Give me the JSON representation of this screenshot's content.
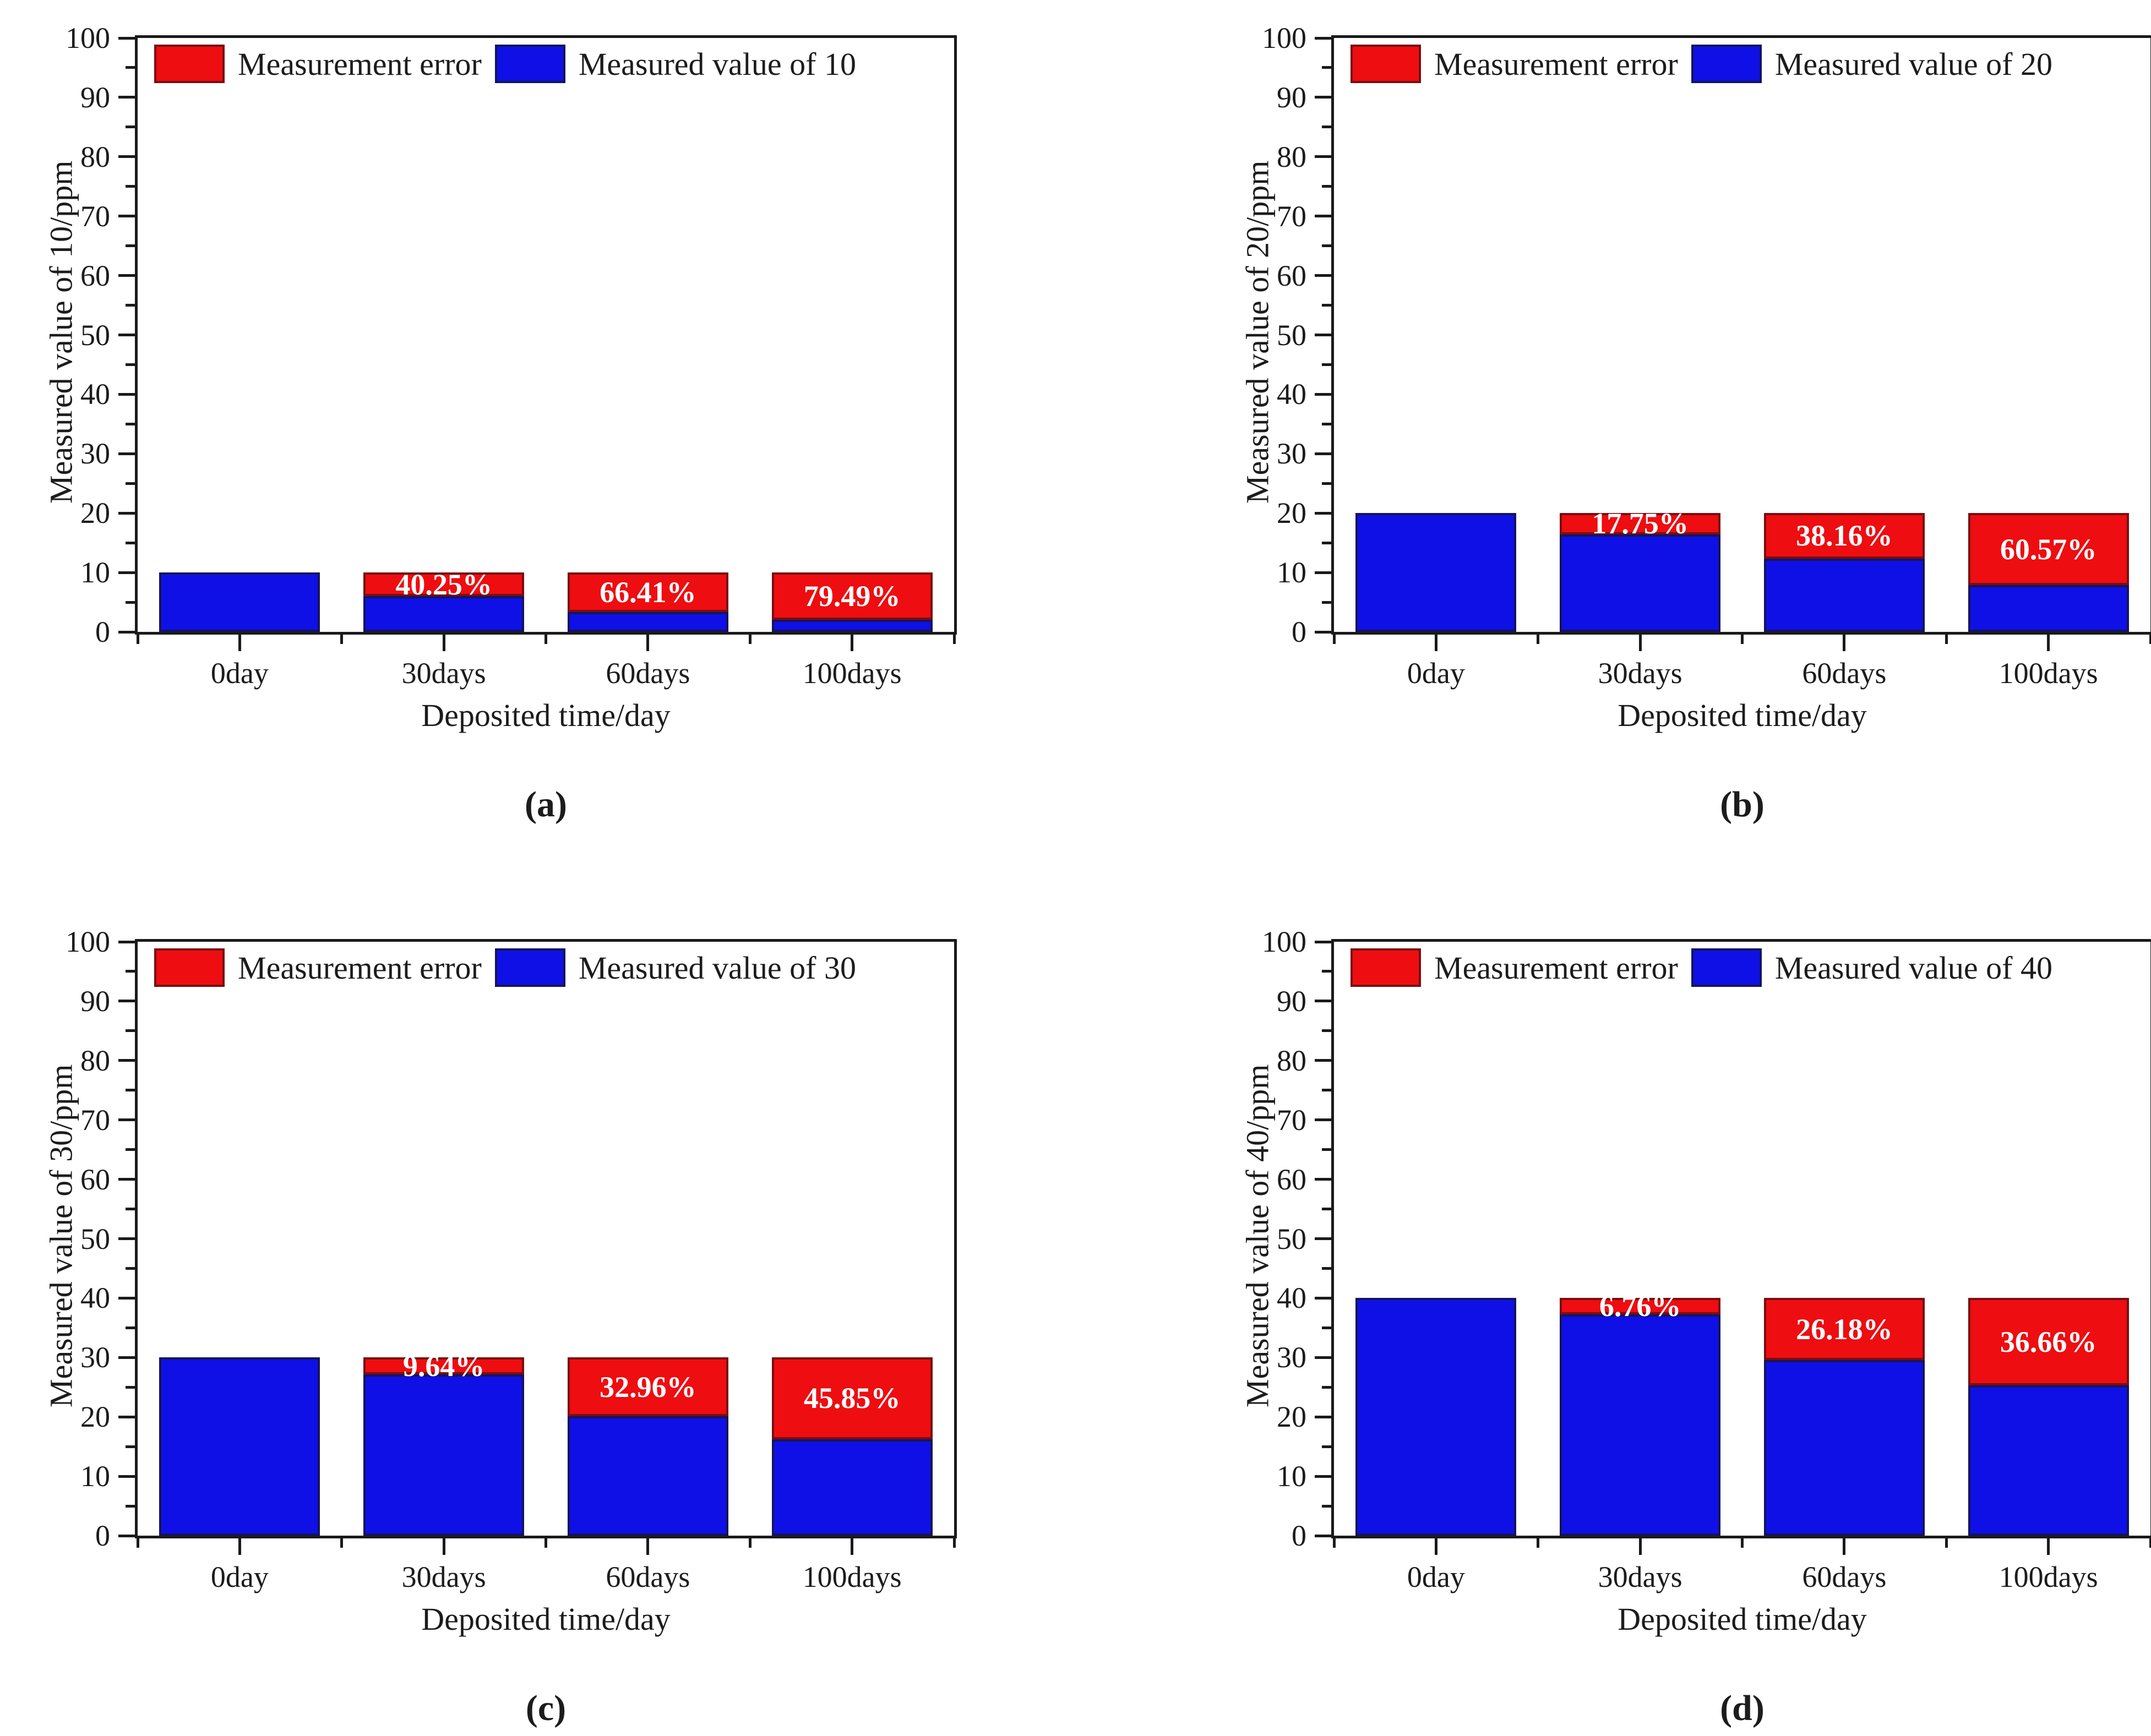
{
  "figure": {
    "background": "#ffffff",
    "text_color": "#1c1c1c",
    "axis_color": "#1a1a1a"
  },
  "chart_data": [
    {
      "type": "bar",
      "stacked": true,
      "panel_label": "(a)",
      "xlabel": "Deposited time/day",
      "ylabel": "Measured value of 10/ppm",
      "categories": [
        "0day",
        "30days",
        "60days",
        "100days"
      ],
      "ylim": [
        0,
        100
      ],
      "yticks": [
        0,
        10,
        20,
        30,
        40,
        50,
        60,
        70,
        80,
        90,
        100
      ],
      "nominal_value": 10,
      "grid": false,
      "legend_position": "top-left-inside",
      "legend": [
        {
          "label": "Measurement error",
          "color": "#ee0d11",
          "border": "#7a0d10"
        },
        {
          "label": "Measured value of 10",
          "color": "#0f10e6",
          "border": "#14145f"
        }
      ],
      "series": [
        {
          "name": "Measured value of 10",
          "role": "measured",
          "color": "#0f10e6",
          "border": "#14145f",
          "values": [
            10,
            5.98,
            3.36,
            2.05
          ]
        },
        {
          "name": "Measurement error",
          "role": "error",
          "color": "#ee0d11",
          "border": "#7a0d10",
          "values": [
            0,
            4.02,
            6.64,
            7.95
          ]
        }
      ],
      "error_percent_labels": [
        "",
        "40.25%",
        "66.41%",
        "79.49%"
      ]
    },
    {
      "type": "bar",
      "stacked": true,
      "panel_label": "(b)",
      "xlabel": "Deposited time/day",
      "ylabel": "Measured value of 20/ppm",
      "categories": [
        "0day",
        "30days",
        "60days",
        "100days"
      ],
      "ylim": [
        0,
        100
      ],
      "yticks": [
        0,
        10,
        20,
        30,
        40,
        50,
        60,
        70,
        80,
        90,
        100
      ],
      "nominal_value": 20,
      "grid": false,
      "legend_position": "top-left-inside",
      "legend": [
        {
          "label": "Measurement error",
          "color": "#ee0d11",
          "border": "#7a0d10"
        },
        {
          "label": "Measured value of 20",
          "color": "#0f10e6",
          "border": "#14145f"
        }
      ],
      "series": [
        {
          "name": "Measured value of 20",
          "role": "measured",
          "color": "#0f10e6",
          "border": "#14145f",
          "values": [
            20,
            16.45,
            12.37,
            7.89
          ]
        },
        {
          "name": "Measurement error",
          "role": "error",
          "color": "#ee0d11",
          "border": "#7a0d10",
          "values": [
            0,
            3.55,
            7.63,
            12.11
          ]
        }
      ],
      "error_percent_labels": [
        "",
        "17.75%",
        "38.16%",
        "60.57%"
      ]
    },
    {
      "type": "bar",
      "stacked": true,
      "panel_label": "(c)",
      "xlabel": "Deposited time/day",
      "ylabel": "Measured value of 30/ppm",
      "categories": [
        "0day",
        "30days",
        "60days",
        "100days"
      ],
      "ylim": [
        0,
        100
      ],
      "yticks": [
        0,
        10,
        20,
        30,
        40,
        50,
        60,
        70,
        80,
        90,
        100
      ],
      "nominal_value": 30,
      "grid": false,
      "legend_position": "top-left-inside",
      "legend": [
        {
          "label": "Measurement error",
          "color": "#ee0d11",
          "border": "#7a0d10"
        },
        {
          "label": "Measured value of 30",
          "color": "#0f10e6",
          "border": "#14145f"
        }
      ],
      "series": [
        {
          "name": "Measured value of 30",
          "role": "measured",
          "color": "#0f10e6",
          "border": "#14145f",
          "values": [
            30,
            27.11,
            20.11,
            16.25
          ]
        },
        {
          "name": "Measurement error",
          "role": "error",
          "color": "#ee0d11",
          "border": "#7a0d10",
          "values": [
            0,
            2.89,
            9.89,
            13.75
          ]
        }
      ],
      "error_percent_labels": [
        "",
        "9.64%",
        "32.96%",
        "45.85%"
      ]
    },
    {
      "type": "bar",
      "stacked": true,
      "panel_label": "(d)",
      "xlabel": "Deposited time/day",
      "ylabel": "Measured value of 40/ppm",
      "categories": [
        "0day",
        "30days",
        "60days",
        "100days"
      ],
      "ylim": [
        0,
        100
      ],
      "yticks": [
        0,
        10,
        20,
        30,
        40,
        50,
        60,
        70,
        80,
        90,
        100
      ],
      "nominal_value": 40,
      "grid": false,
      "legend_position": "top-left-inside",
      "legend": [
        {
          "label": "Measurement error",
          "color": "#ee0d11",
          "border": "#7a0d10"
        },
        {
          "label": "Measured value of 40",
          "color": "#0f10e6",
          "border": "#14145f"
        }
      ],
      "series": [
        {
          "name": "Measured value of 40",
          "role": "measured",
          "color": "#0f10e6",
          "border": "#14145f",
          "values": [
            40,
            37.3,
            29.53,
            25.34
          ]
        },
        {
          "name": "Measurement error",
          "role": "error",
          "color": "#ee0d11",
          "border": "#7a0d10",
          "values": [
            0,
            2.7,
            10.47,
            14.66
          ]
        }
      ],
      "error_percent_labels": [
        "",
        "6.76%",
        "26.18%",
        "36.66%"
      ]
    }
  ]
}
